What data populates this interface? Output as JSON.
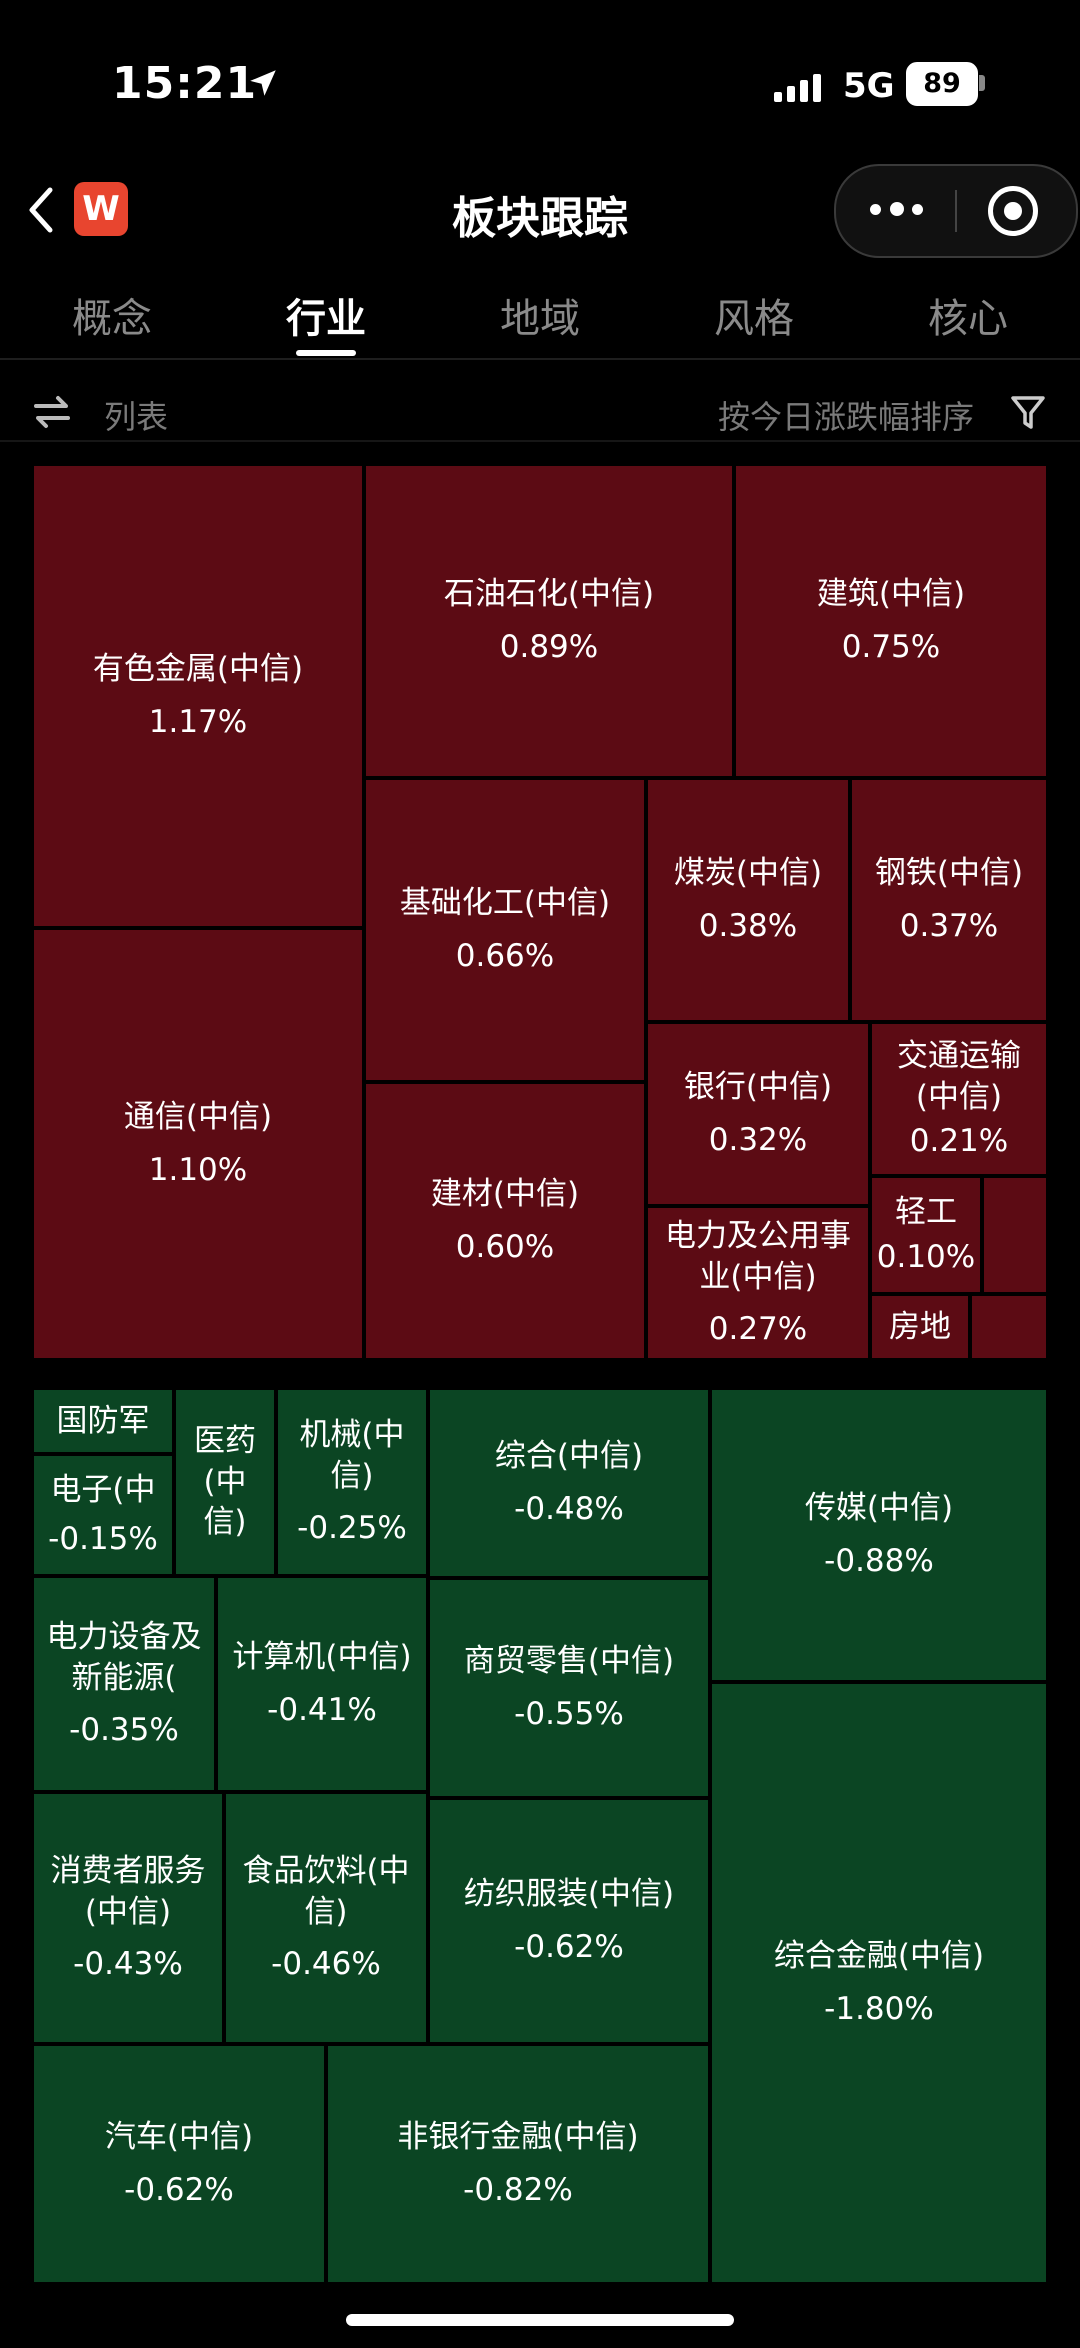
{
  "status_bar": {
    "time": "15:21",
    "network": "5G",
    "battery": "89"
  },
  "nav": {
    "title": "板块跟踪",
    "logo_text": "W"
  },
  "tabs": [
    {
      "label": "概念",
      "active": false
    },
    {
      "label": "行业",
      "active": true
    },
    {
      "label": "地域",
      "active": false
    },
    {
      "label": "风格",
      "active": false
    },
    {
      "label": "核心",
      "active": false
    }
  ],
  "toolbar": {
    "list_label": "列表",
    "sort_label": "按今日涨跌幅排序"
  },
  "colors": {
    "up": "#5c0b14",
    "down": "#0b4523",
    "background": "#000000"
  },
  "treemap": {
    "up_sectors": [
      {
        "name": "有色金属(中信)",
        "change": "1.17%"
      },
      {
        "name": "通信(中信)",
        "change": "1.10%"
      },
      {
        "name": "石油石化(中信)",
        "change": "0.89%"
      },
      {
        "name": "建筑(中信)",
        "change": "0.75%"
      },
      {
        "name": "基础化工(中信)",
        "change": "0.66%"
      },
      {
        "name": "建材(中信)",
        "change": "0.60%"
      },
      {
        "name": "煤炭(中信)",
        "change": "0.38%"
      },
      {
        "name": "钢铁(中信)",
        "change": "0.37%"
      },
      {
        "name": "银行(中信)",
        "change": "0.32%"
      },
      {
        "name": "电力及公用事业(中信)",
        "change": "0.27%"
      },
      {
        "name": "交通运输(中信)",
        "change": "0.21%"
      },
      {
        "name": "轻工",
        "change": "0.10%"
      },
      {
        "name": "房地",
        "change": ""
      },
      {
        "name": "",
        "change": ""
      },
      {
        "name": "",
        "change": ""
      }
    ],
    "down_sectors": [
      {
        "name": "国防军",
        "change": ""
      },
      {
        "name": "电子(中",
        "change": "-0.15%"
      },
      {
        "name": "医药(中信)",
        "change": ""
      },
      {
        "name": "机械(中信)",
        "change": "-0.25%"
      },
      {
        "name": "综合(中信)",
        "change": "-0.48%"
      },
      {
        "name": "传媒(中信)",
        "change": "-0.88%"
      },
      {
        "name": "电力设备及新能源(",
        "change": "-0.35%"
      },
      {
        "name": "计算机(中信)",
        "change": "-0.41%"
      },
      {
        "name": "商贸零售(中信)",
        "change": "-0.55%"
      },
      {
        "name": "消费者服务(中信)",
        "change": "-0.43%"
      },
      {
        "name": "食品饮料(中信)",
        "change": "-0.46%"
      },
      {
        "name": "纺织服装(中信)",
        "change": "-0.62%"
      },
      {
        "name": "综合金融(中信)",
        "change": "-1.80%"
      },
      {
        "name": "汽车(中信)",
        "change": "-0.62%"
      },
      {
        "name": "非银行金融(中信)",
        "change": "-0.82%"
      }
    ]
  }
}
